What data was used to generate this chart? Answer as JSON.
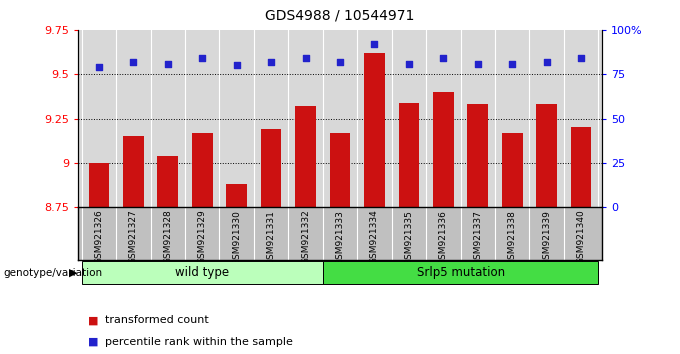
{
  "title": "GDS4988 / 10544971",
  "samples": [
    "GSM921326",
    "GSM921327",
    "GSM921328",
    "GSM921329",
    "GSM921330",
    "GSM921331",
    "GSM921332",
    "GSM921333",
    "GSM921334",
    "GSM921335",
    "GSM921336",
    "GSM921337",
    "GSM921338",
    "GSM921339",
    "GSM921340"
  ],
  "transformed_count": [
    9.0,
    9.15,
    9.04,
    9.17,
    8.88,
    9.19,
    9.32,
    9.17,
    9.62,
    9.34,
    9.4,
    9.33,
    9.17,
    9.33,
    9.2
  ],
  "percentile_rank": [
    79,
    82,
    81,
    84,
    80,
    82,
    84,
    82,
    92,
    81,
    84,
    81,
    81,
    82,
    84
  ],
  "ylim_left": [
    8.75,
    9.75
  ],
  "ylim_right": [
    0,
    100
  ],
  "yticks_left": [
    8.75,
    9.0,
    9.25,
    9.5,
    9.75
  ],
  "yticks_right": [
    0,
    25,
    50,
    75,
    100
  ],
  "ytick_labels_left": [
    "8.75",
    "9",
    "9.25",
    "9.5",
    "9.75"
  ],
  "ytick_labels_right": [
    "0",
    "25",
    "50",
    "75",
    "100%"
  ],
  "hlines": [
    9.0,
    9.25,
    9.5
  ],
  "bar_color": "#cc1111",
  "dot_color": "#2222cc",
  "bar_width": 0.6,
  "plot_bg": "#d8d8d8",
  "label_bg": "#c0c0c0",
  "wt_color": "#bbffbb",
  "mut_color": "#44dd44",
  "legend_items": [
    "transformed count",
    "percentile rank within the sample"
  ]
}
